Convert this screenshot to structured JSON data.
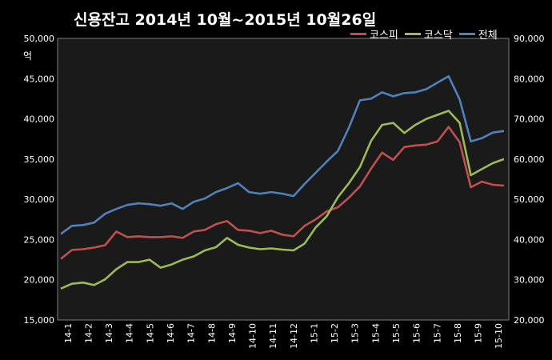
{
  "chart_data": {
    "type": "line",
    "title": "신용잔고  2014년 10월~2015년 10월26일",
    "y_unit": "억",
    "y_left_lim": [
      15000,
      50000
    ],
    "y_left_ticks": [
      "15,000",
      "20,000",
      "25,000",
      "30,000",
      "35,000",
      "40,000",
      "45,000",
      "50,000"
    ],
    "y_right_lim": [
      20000,
      90000
    ],
    "y_right_ticks": [
      "20,000",
      "30,000",
      "40,000",
      "50,000",
      "60,000",
      "70,000",
      "80,000",
      "90,000"
    ],
    "x_ticks": [
      "14-1",
      "14-2",
      "14-3",
      "14-4",
      "14-5",
      "14-6",
      "14-7",
      "14-8",
      "14-9",
      "14-10",
      "14-11",
      "14-12",
      "15-1",
      "15-2",
      "15-3",
      "15-4",
      "15-5",
      "15-6",
      "15-7",
      "15-8",
      "15-9",
      "15-10"
    ],
    "grid": true,
    "legend_position": "top-right",
    "series": [
      {
        "name": "코스피",
        "color": "#c0504d",
        "axis": "left",
        "values": [
          22600,
          23700,
          23800,
          24000,
          24300,
          26000,
          25300,
          25400,
          25300,
          25300,
          25400,
          25200,
          26000,
          26200,
          26900,
          27300,
          26200,
          26100,
          25800,
          26100,
          25600,
          25400,
          26700,
          27500,
          28500,
          29000,
          30200,
          31600,
          33800,
          35800,
          34900,
          36500,
          36700,
          36800,
          37200,
          39000,
          37100,
          31500,
          32200,
          31800,
          31700
        ]
      },
      {
        "name": "코스닥",
        "color": "#9bbb59",
        "axis": "right",
        "values": [
          27800,
          29000,
          29300,
          28700,
          30100,
          32600,
          34400,
          34400,
          35000,
          33000,
          33800,
          35000,
          35800,
          37300,
          38100,
          40400,
          38700,
          38000,
          37600,
          37800,
          37500,
          37300,
          39000,
          43000,
          45800,
          50500,
          54000,
          58000,
          64500,
          68500,
          69000,
          66500,
          68500,
          70000,
          71000,
          72000,
          69000,
          56000,
          57500,
          59000,
          60000
        ]
      },
      {
        "name": "전체",
        "color": "#4f81bd",
        "axis": "left",
        "values": [
          25700,
          26700,
          26800,
          27100,
          28200,
          28800,
          29300,
          29500,
          29400,
          29200,
          29500,
          28800,
          29700,
          30100,
          30900,
          31400,
          32000,
          30900,
          30700,
          30900,
          30700,
          30400,
          31900,
          33300,
          34700,
          36000,
          38900,
          42300,
          42500,
          43300,
          42800,
          43200,
          43300,
          43700,
          44500,
          45300,
          42400,
          37200,
          37600,
          38300,
          38500
        ]
      }
    ]
  }
}
